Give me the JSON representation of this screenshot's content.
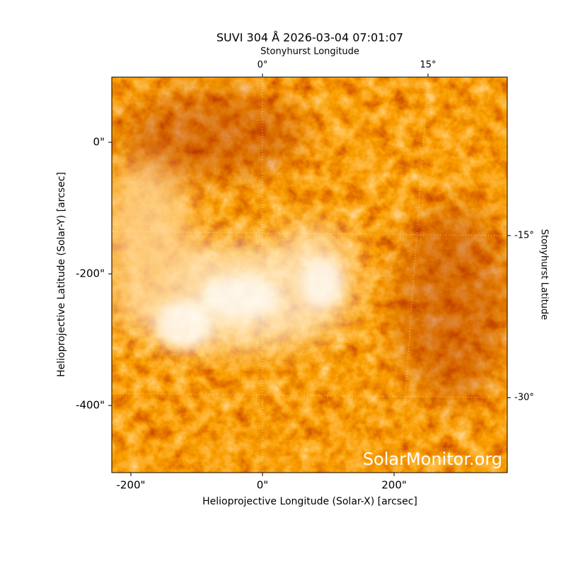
{
  "chart_data": {
    "type": "image",
    "title": "SUVI 304 Å 2026-03-04 07:01:07",
    "xlabel": "Helioprojective Longitude (Solar-X) [arcsec]",
    "ylabel": "Helioprojective Latitude (Solar-Y) [arcsec]",
    "x2label": "Stonyhurst Longitude",
    "y2label": "Stonyhurst Latitude",
    "xlim": [
      -229,
      372
    ],
    "ylim": [
      -502,
      99
    ],
    "xticks": [
      {
        "value": -200,
        "label": "-200\""
      },
      {
        "value": 0,
        "label": "0\""
      },
      {
        "value": 200,
        "label": "200\""
      }
    ],
    "yticks": [
      {
        "value": 0,
        "label": "0\""
      },
      {
        "value": -200,
        "label": "-200\""
      },
      {
        "value": -400,
        "label": "-400\""
      }
    ],
    "x2lim": [
      -13.65,
      22.18
    ],
    "x2ticks": [
      {
        "value": 0,
        "label": "0°"
      },
      {
        "value": 15,
        "label": "15°"
      }
    ],
    "y2lim": [
      -36.94,
      -0.33
    ],
    "y2ticks": [
      {
        "value": -15,
        "label": "-15°"
      },
      {
        "value": -30,
        "label": "-30°"
      }
    ],
    "grid": true,
    "watermark": "SolarMonitor.org"
  }
}
